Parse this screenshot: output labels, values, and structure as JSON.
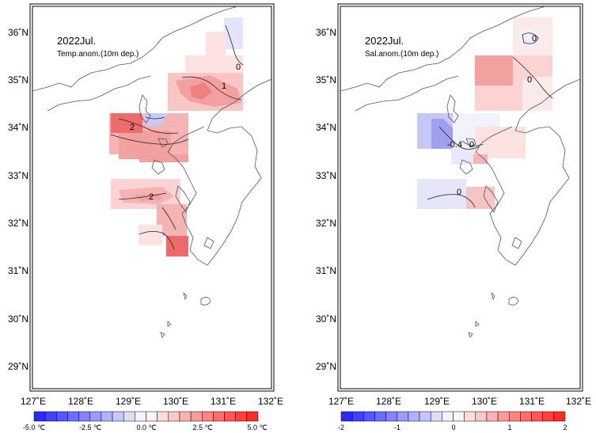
{
  "panels": [
    {
      "id": "temp",
      "title": "2022Jul.",
      "subtitle": "Temp.anom.(10m dep.)",
      "x_ticks": [
        "127˚E",
        "128˚E",
        "129˚E",
        "130˚E",
        "131˚E",
        "132˚E"
      ],
      "y_ticks": [
        "36˚N",
        "35˚N",
        "34˚N",
        "33˚N",
        "32˚N",
        "31˚N",
        "30˚N",
        "29˚N"
      ],
      "contour_labels": [
        "0",
        "1",
        "2",
        "2"
      ],
      "colorbar": {
        "labels": [
          "-5.0 ℃",
          "-2.5 ℃",
          "0.0 ℃",
          "2.5 ℃",
          "5.0 ℃"
        ],
        "range": [
          -5,
          5
        ]
      }
    },
    {
      "id": "sal",
      "title": "2022Jul.",
      "subtitle": "Sal.anom.(10m dep.)",
      "x_ticks": [
        "127˚E",
        "128˚E",
        "129˚E",
        "130˚E",
        "131˚E",
        "132˚E"
      ],
      "y_ticks": [
        "36˚N",
        "35˚N",
        "34˚N",
        "33˚N",
        "32˚N",
        "31˚N",
        "30˚N",
        "29˚N"
      ],
      "contour_labels": [
        "0",
        "0",
        "-0.4",
        "0",
        "0"
      ],
      "colorbar": {
        "labels": [
          "-2",
          "-1",
          "0",
          "1",
          "2"
        ],
        "range": [
          -2,
          2
        ]
      }
    }
  ],
  "colors": {
    "neg_strong": "#1f1fff",
    "neutral": "#ffffff",
    "pos_strong": "#ff1f1f"
  }
}
